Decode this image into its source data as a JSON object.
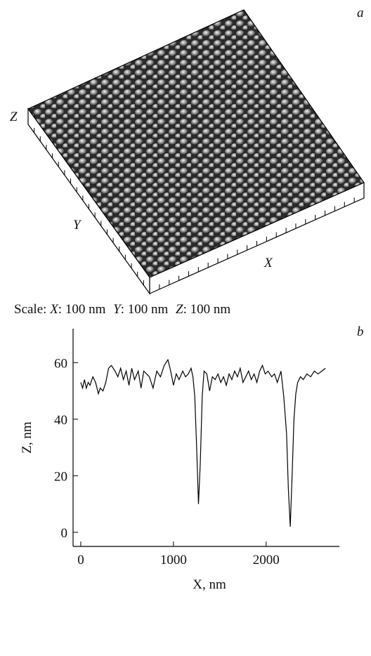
{
  "panel_a": {
    "label": "a",
    "axis_labels": {
      "z": "Z",
      "y": "Y",
      "x": "X"
    },
    "scale": {
      "prefix": "Scale:",
      "x_name": "X",
      "x_value": ": 100 nm",
      "y_name": "Y",
      "y_value": ": 100 nm",
      "z_name": "Z",
      "z_value": ": 100 nm"
    }
  },
  "chart_data": {
    "type": "line",
    "panel_label": "b",
    "xlabel": "X, nm",
    "ylabel": "Z, nm",
    "color": "#000000",
    "x": [
      0,
      20,
      40,
      60,
      80,
      100,
      130,
      160,
      190,
      210,
      240,
      270,
      300,
      330,
      370,
      400,
      430,
      460,
      490,
      520,
      550,
      580,
      620,
      650,
      680,
      710,
      740,
      780,
      820,
      860,
      900,
      940,
      970,
      1000,
      1030,
      1060,
      1100,
      1130,
      1160,
      1190,
      1210,
      1230,
      1250,
      1270,
      1290,
      1310,
      1330,
      1360,
      1390,
      1420,
      1450,
      1480,
      1510,
      1540,
      1570,
      1600,
      1630,
      1660,
      1690,
      1720,
      1750,
      1780,
      1810,
      1840,
      1870,
      1900,
      1930,
      1960,
      1990,
      2020,
      2060,
      2090,
      2120,
      2160,
      2190,
      2220,
      2240,
      2260,
      2280,
      2300,
      2320,
      2340,
      2370,
      2400,
      2440,
      2480,
      2520,
      2560,
      2600,
      2640
    ],
    "values": [
      53,
      51,
      54,
      51,
      53,
      52,
      55,
      53,
      49,
      51,
      50,
      53,
      58,
      59,
      57,
      55,
      58,
      54,
      57,
      52,
      58,
      54,
      57,
      51,
      57,
      56,
      55,
      51,
      57,
      55,
      59,
      61,
      57,
      52,
      56,
      54,
      57,
      55,
      56,
      58,
      55,
      48,
      30,
      10,
      25,
      48,
      57,
      56,
      50,
      55,
      54,
      56,
      53,
      55,
      52,
      56,
      54,
      57,
      55,
      58,
      53,
      55,
      57,
      54,
      56,
      53,
      57,
      59,
      56,
      57,
      55,
      56,
      53,
      57,
      48,
      35,
      15,
      2,
      20,
      40,
      49,
      53,
      55,
      54,
      56,
      55,
      57,
      56,
      57,
      58
    ],
    "xlim": [
      -83,
      2790
    ],
    "ylim": [
      -5,
      72
    ],
    "xticks": [
      0,
      1000,
      2000
    ],
    "yticks": [
      0,
      20,
      40,
      60
    ]
  }
}
